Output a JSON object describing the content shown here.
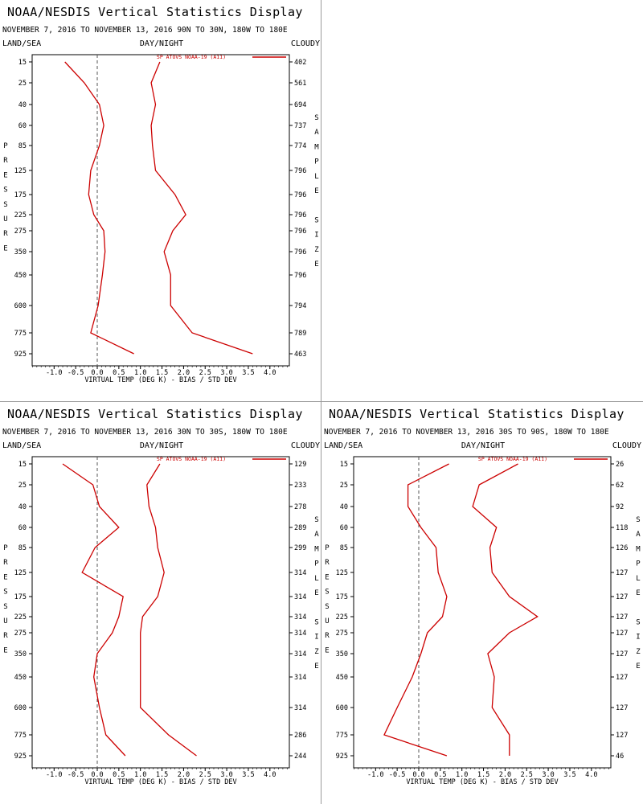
{
  "charts": [
    {
      "title": "NOAA/NESDIS Vertical Statistics Display",
      "subtitle": "NOVEMBER 7, 2016 TO NOVEMBER 13, 2016 90N TO 30N, 180W TO 180E",
      "left_header": "LAND/SEA",
      "center_header": "DAY/NIGHT",
      "right_header": "CLOUDY",
      "legend_label": "SP ATOVS NOAA-19 (A11)",
      "xlabel": "VIRTUAL TEMP (DEG K) - BIAS / STD DEV",
      "ylabel_letters": [
        "P",
        "R",
        "E",
        "S",
        "S",
        "U",
        "R",
        "E"
      ],
      "right_label_letters": [
        "S",
        "A",
        "M",
        "P",
        "L",
        "E",
        "",
        "S",
        "I",
        "Z",
        "E"
      ]
    },
    {
      "title": "NOAA/NESDIS Vertical Statistics Display",
      "subtitle": "NOVEMBER 7, 2016 TO NOVEMBER 13, 2016 30N TO 30S, 180W TO 180E",
      "left_header": "LAND/SEA",
      "center_header": "DAY/NIGHT",
      "right_header": "CLOUDY",
      "legend_label": "SP ATOVS NOAA-19 (A11)",
      "xlabel": "VIRTUAL TEMP (DEG K) - BIAS / STD DEV",
      "ylabel_letters": [
        "P",
        "R",
        "E",
        "S",
        "S",
        "U",
        "R",
        "E"
      ],
      "right_label_letters": [
        "S",
        "A",
        "M",
        "P",
        "L",
        "E",
        "",
        "S",
        "I",
        "Z",
        "E"
      ]
    },
    {
      "title": "NOAA/NESDIS Vertical Statistics Display",
      "subtitle": "NOVEMBER 7, 2016 TO NOVEMBER 13, 2016 30S TO 90S, 180W TO 180E",
      "left_header": "LAND/SEA",
      "center_header": "DAY/NIGHT",
      "right_header": "CLOUDY",
      "legend_label": "SP ATOVS NOAA-19 (A11)",
      "xlabel": "VIRTUAL TEMP (DEG K) - BIAS / STD DEV",
      "ylabel_letters": [
        "P",
        "R",
        "E",
        "S",
        "S",
        "U",
        "R",
        "E"
      ],
      "right_label_letters": [
        "S",
        "A",
        "M",
        "P",
        "L",
        "E",
        "",
        "S",
        "I",
        "Z",
        "E"
      ]
    }
  ],
  "colors": {
    "series": "#cc0000",
    "zero_line": "#555555",
    "axis": "#000000"
  },
  "chart_data": [
    {
      "type": "line",
      "region": "90N TO 30N",
      "pressure_levels": [
        15,
        25,
        40,
        60,
        85,
        125,
        175,
        225,
        275,
        350,
        450,
        600,
        775,
        925
      ],
      "sample_size": [
        402,
        561,
        694,
        737,
        774,
        796,
        796,
        796,
        796,
        796,
        796,
        794,
        789,
        463
      ],
      "xlim": [
        -1.5,
        4.5
      ],
      "x_ticks": [
        "-1.0",
        "-0.5",
        "0.0",
        "0.5",
        "1.0",
        "1.5",
        "2.0",
        "2.5",
        "3.0",
        "3.5",
        "4.0"
      ],
      "series": [
        {
          "name": "BIAS",
          "values": [
            -0.75,
            -0.3,
            0.05,
            0.15,
            0.05,
            -0.15,
            -0.2,
            -0.08,
            0.15,
            0.18,
            0.12,
            0.02,
            -0.15,
            0.85
          ]
        },
        {
          "name": "STD DEV",
          "values": [
            1.45,
            1.25,
            1.35,
            1.25,
            1.28,
            1.35,
            1.8,
            2.05,
            1.75,
            1.55,
            1.7,
            1.7,
            2.2,
            3.6
          ]
        }
      ]
    },
    {
      "type": "line",
      "region": "30N TO 30S",
      "pressure_levels": [
        15,
        25,
        40,
        60,
        85,
        125,
        175,
        225,
        275,
        350,
        450,
        600,
        775,
        925
      ],
      "sample_size": [
        129,
        233,
        278,
        289,
        299,
        314,
        314,
        314,
        314,
        314,
        314,
        314,
        286,
        244
      ],
      "xlim": [
        -1.5,
        4.5
      ],
      "x_ticks": [
        "-1.0",
        "-0.5",
        "0.0",
        "0.5",
        "1.0",
        "1.5",
        "2.0",
        "2.5",
        "3.0",
        "3.5",
        "4.0"
      ],
      "series": [
        {
          "name": "BIAS",
          "values": [
            -0.8,
            -0.1,
            0.05,
            0.5,
            -0.05,
            -0.35,
            0.6,
            0.5,
            0.35,
            0.0,
            -0.08,
            0.05,
            0.2,
            0.65
          ]
        },
        {
          "name": "STD DEV",
          "values": [
            1.45,
            1.15,
            1.2,
            1.35,
            1.4,
            1.55,
            1.4,
            1.05,
            1.0,
            1.0,
            1.0,
            1.0,
            1.65,
            2.3
          ]
        }
      ]
    },
    {
      "type": "line",
      "region": "30S TO 90S",
      "pressure_levels": [
        15,
        25,
        40,
        60,
        85,
        125,
        175,
        225,
        275,
        350,
        450,
        600,
        775,
        925
      ],
      "sample_size": [
        26,
        62,
        92,
        118,
        126,
        127,
        127,
        127,
        127,
        127,
        127,
        127,
        127,
        46
      ],
      "xlim": [
        -1.5,
        4.5
      ],
      "x_ticks": [
        "-1.0",
        "-0.5",
        "0.0",
        "0.5",
        "1.0",
        "1.5",
        "2.0",
        "2.5",
        "3.0",
        "3.5",
        "4.0"
      ],
      "series": [
        {
          "name": "BIAS",
          "values": [
            0.7,
            -0.25,
            -0.25,
            0.05,
            0.4,
            0.45,
            0.65,
            0.55,
            0.2,
            0.05,
            -0.15,
            -0.5,
            -0.8,
            0.65
          ]
        },
        {
          "name": "STD DEV",
          "values": [
            2.3,
            1.4,
            1.25,
            1.8,
            1.65,
            1.7,
            2.1,
            2.75,
            2.1,
            1.6,
            1.75,
            1.7,
            2.1,
            2.1
          ]
        }
      ]
    }
  ]
}
